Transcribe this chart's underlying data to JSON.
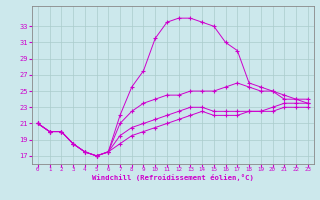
{
  "bg_color": "#cce8ec",
  "grid_color": "#aacccc",
  "line_color": "#cc00cc",
  "hours": [
    0,
    1,
    2,
    3,
    4,
    5,
    6,
    7,
    8,
    9,
    10,
    11,
    12,
    13,
    14,
    15,
    16,
    17,
    18,
    19,
    20,
    21,
    22,
    23
  ],
  "temp": [
    21.0,
    20.0,
    20.0,
    18.5,
    17.5,
    17.0,
    17.5,
    22.0,
    25.5,
    27.5,
    31.5,
    33.5,
    34.0,
    34.0,
    33.5,
    33.0,
    31.0,
    30.0,
    26.0,
    25.5,
    25.0,
    24.0,
    24.0,
    23.5
  ],
  "line2": [
    21.0,
    20.0,
    20.0,
    18.5,
    17.5,
    17.0,
    17.5,
    21.0,
    22.5,
    23.5,
    24.0,
    24.5,
    24.5,
    25.0,
    25.0,
    25.0,
    25.5,
    26.0,
    25.5,
    25.0,
    25.0,
    24.5,
    24.0,
    24.0
  ],
  "line3": [
    21.0,
    20.0,
    20.0,
    18.5,
    17.5,
    17.0,
    17.5,
    19.5,
    20.5,
    21.0,
    21.5,
    22.0,
    22.5,
    23.0,
    23.0,
    22.5,
    22.5,
    22.5,
    22.5,
    22.5,
    22.5,
    23.0,
    23.0,
    23.0
  ],
  "line4": [
    21.0,
    20.0,
    20.0,
    18.5,
    17.5,
    17.0,
    17.5,
    18.5,
    19.5,
    20.0,
    20.5,
    21.0,
    21.5,
    22.0,
    22.5,
    22.0,
    22.0,
    22.0,
    22.5,
    22.5,
    23.0,
    23.5,
    23.5,
    23.5
  ],
  "ylim": [
    16.0,
    35.5
  ],
  "yticks": [
    17,
    19,
    21,
    23,
    25,
    27,
    29,
    31,
    33
  ],
  "xlim": [
    -0.5,
    23.5
  ],
  "xticks": [
    0,
    1,
    2,
    3,
    4,
    5,
    6,
    7,
    8,
    9,
    10,
    11,
    12,
    13,
    14,
    15,
    16,
    17,
    18,
    19,
    20,
    21,
    22,
    23
  ],
  "xlabel": "Windchill (Refroidissement éolien,°C)"
}
